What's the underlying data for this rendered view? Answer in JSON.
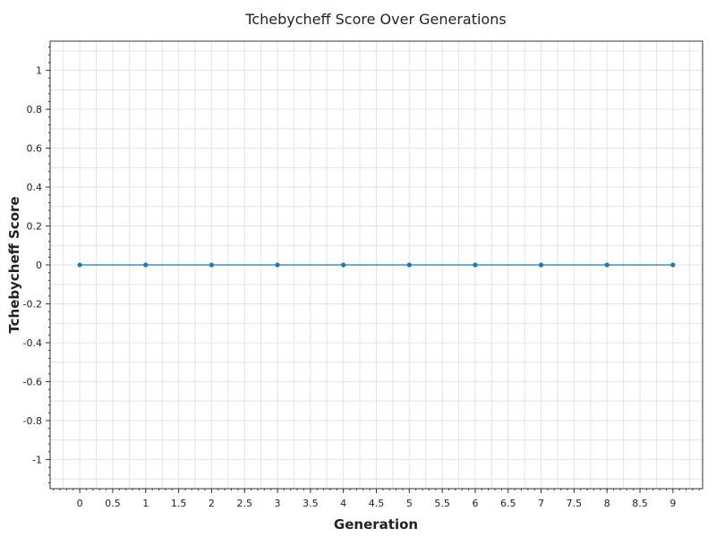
{
  "chart_data": {
    "type": "line",
    "title": "Tchebycheff Score Over Generations",
    "xlabel": "Generation",
    "ylabel": "Tchebycheff Score",
    "x": [
      0,
      1,
      2,
      3,
      4,
      5,
      6,
      7,
      8,
      9
    ],
    "series": [
      {
        "values": [
          0,
          0,
          0,
          0,
          0,
          0,
          0,
          0,
          0,
          0
        ]
      }
    ],
    "xlim": [
      -0.45,
      9.45
    ],
    "ylim": [
      -1.15,
      1.15
    ],
    "xticks": [
      0,
      0.5,
      1,
      1.5,
      2,
      2.5,
      3,
      3.5,
      4,
      4.5,
      5,
      5.5,
      6,
      6.5,
      7,
      7.5,
      8,
      8.5,
      9
    ],
    "xtick_labels": [
      "0",
      "0.5",
      "1",
      "1.5",
      "2",
      "2.5",
      "3",
      "3.5",
      "4",
      "4.5",
      "5",
      "5.5",
      "6",
      "6.5",
      "7",
      "7.5",
      "8",
      "8.5",
      "9"
    ],
    "yticks": [
      1,
      0.8,
      0.6,
      0.4,
      0.2,
      0,
      -0.2,
      -0.4,
      -0.6,
      -0.8,
      -1
    ],
    "ytick_labels": [
      "1",
      "0.8",
      "0.6",
      "0.4",
      "0.2",
      "0",
      "-0.2",
      "-0.4",
      "-0.6",
      "-0.8",
      "-1"
    ],
    "grid": true,
    "colors": {
      "line": "#1f77b4",
      "marker": "#1f77b4",
      "grid": "#e3e3e3",
      "axis": "#333333"
    }
  }
}
